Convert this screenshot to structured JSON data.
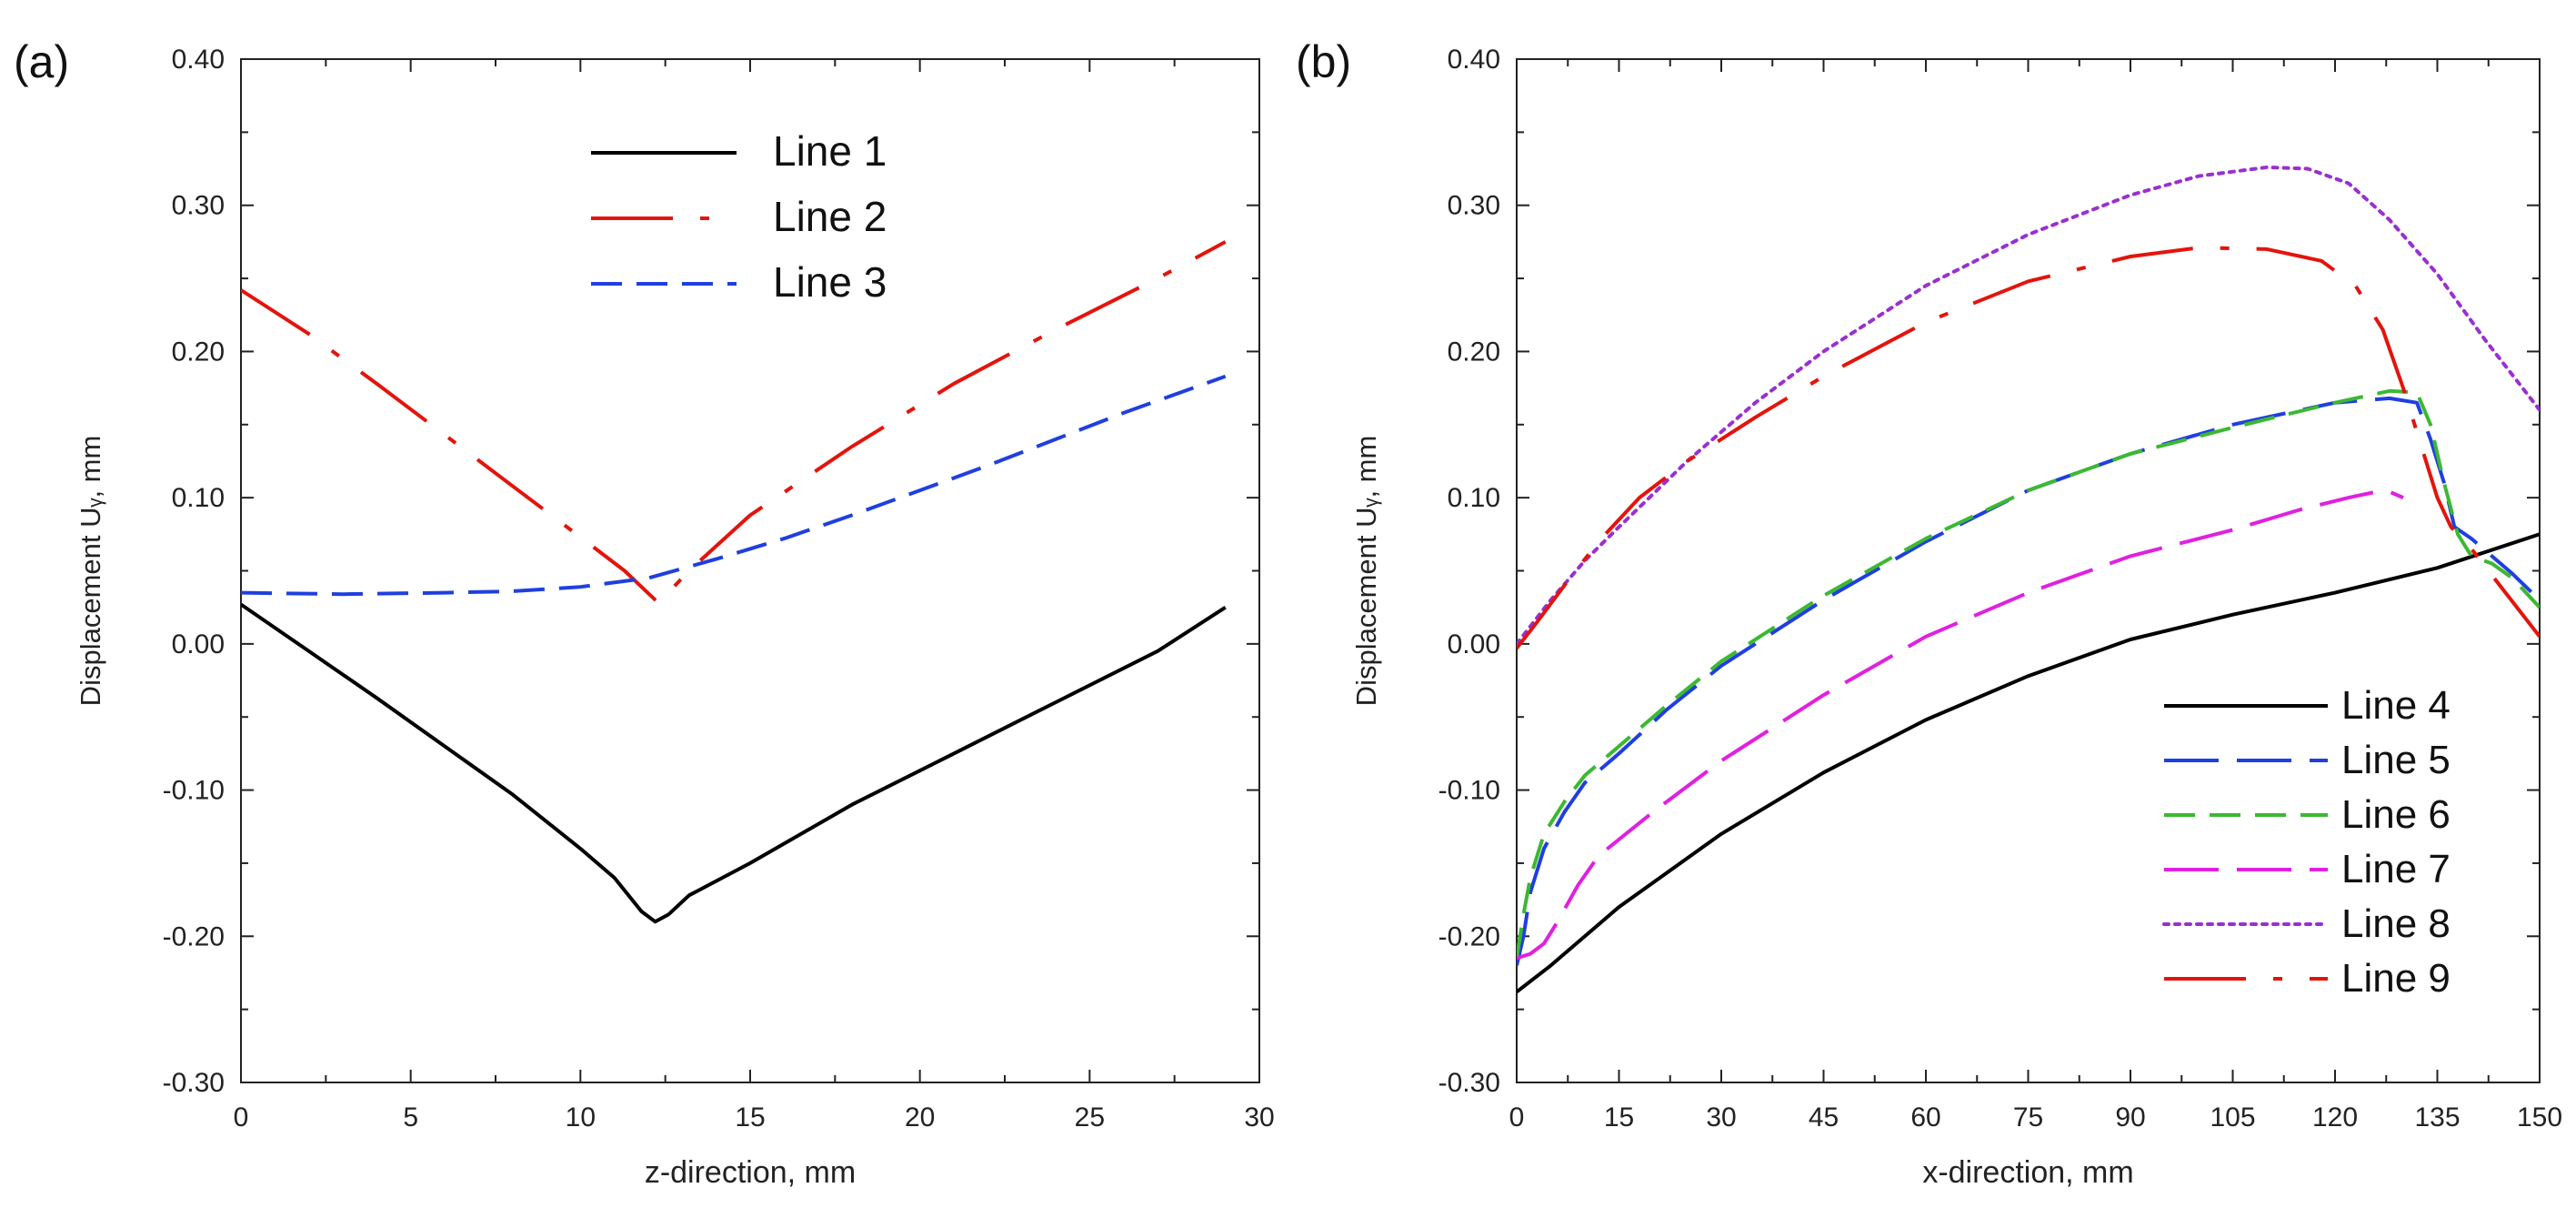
{
  "chart_data": [
    {
      "panel_label": "(a)",
      "type": "line",
      "xlabel": "z-direction, mm",
      "ylabel": "Displacement Uᵧ, mm",
      "xlim": [
        0,
        30
      ],
      "ylim": [
        -0.3,
        0.4
      ],
      "xticks": [
        "0",
        "5",
        "10",
        "15",
        "20",
        "25",
        "30"
      ],
      "yticks": [
        "-0.30",
        "-0.20",
        "-0.10",
        "0.00",
        "0.10",
        "0.20",
        "0.30",
        "0.40"
      ],
      "legend_position": "top-center",
      "series": [
        {
          "name": "Line 1",
          "color": "#000000",
          "style": "solid",
          "x": [
            0,
            2,
            4,
            6,
            8,
            10,
            11,
            11.8,
            12.2,
            12.6,
            13.2,
            15,
            18,
            21,
            24,
            27,
            29
          ],
          "y": [
            0.027,
            -0.005,
            -0.037,
            -0.07,
            -0.103,
            -0.14,
            -0.16,
            -0.183,
            -0.19,
            -0.185,
            -0.172,
            -0.15,
            -0.11,
            -0.075,
            -0.04,
            -0.005,
            0.025
          ]
        },
        {
          "name": "Line 2",
          "color": "#e3140c",
          "style": "dashdot",
          "x": [
            0,
            2,
            4,
            6,
            8,
            10,
            11.3,
            12.3,
            13.2,
            15,
            18,
            21,
            24,
            27,
            29
          ],
          "y": [
            0.242,
            0.212,
            0.178,
            0.143,
            0.108,
            0.073,
            0.05,
            0.028,
            0.05,
            0.088,
            0.135,
            0.178,
            0.215,
            0.25,
            0.275
          ]
        },
        {
          "name": "Line 3",
          "color": "#1f3fe0",
          "style": "dashed",
          "x": [
            0,
            3,
            6,
            8,
            10,
            12,
            14,
            16,
            18,
            20,
            22,
            24,
            26,
            29
          ],
          "y": [
            0.035,
            0.034,
            0.035,
            0.036,
            0.039,
            0.045,
            0.058,
            0.072,
            0.088,
            0.105,
            0.122,
            0.14,
            0.158,
            0.183
          ]
        }
      ]
    },
    {
      "panel_label": "(b)",
      "type": "line",
      "xlabel": "x-direction, mm",
      "ylabel": "Displacement Uᵧ, mm",
      "xlim": [
        0,
        150
      ],
      "ylim": [
        -0.3,
        0.4
      ],
      "xticks": [
        "0",
        "15",
        "30",
        "45",
        "60",
        "75",
        "90",
        "105",
        "120",
        "135",
        "150"
      ],
      "yticks": [
        "-0.30",
        "-0.20",
        "-0.10",
        "0.00",
        "0.10",
        "0.20",
        "0.30",
        "0.40"
      ],
      "legend_position": "bottom-right",
      "series": [
        {
          "name": "Line 4",
          "color": "#000000",
          "style": "solid",
          "x": [
            0,
            5,
            15,
            30,
            45,
            60,
            75,
            90,
            105,
            120,
            135,
            150
          ],
          "y": [
            -0.238,
            -0.22,
            -0.18,
            -0.13,
            -0.088,
            -0.052,
            -0.022,
            0.003,
            0.02,
            0.035,
            0.052,
            0.075
          ]
        },
        {
          "name": "Line 5",
          "color": "#1f3fe0",
          "style": "longdash",
          "x": [
            0,
            1,
            2,
            4,
            7,
            10,
            15,
            22,
            30,
            45,
            60,
            75,
            90,
            105,
            120,
            128,
            132,
            134,
            136,
            137.5,
            140,
            143,
            146,
            150
          ],
          "y": [
            -0.22,
            -0.2,
            -0.17,
            -0.14,
            -0.115,
            -0.095,
            -0.075,
            -0.045,
            -0.015,
            0.03,
            0.07,
            0.105,
            0.13,
            0.15,
            0.165,
            0.168,
            0.165,
            0.14,
            0.11,
            0.08,
            0.072,
            0.06,
            0.048,
            0.03
          ]
        },
        {
          "name": "Line 6",
          "color": "#3cb832",
          "style": "dashed",
          "x": [
            0,
            1,
            2,
            4,
            7,
            10,
            15,
            22,
            30,
            45,
            60,
            75,
            90,
            105,
            120,
            128,
            132,
            134,
            136,
            138,
            140,
            143,
            146,
            150
          ],
          "y": [
            -0.215,
            -0.185,
            -0.16,
            -0.13,
            -0.108,
            -0.09,
            -0.07,
            -0.042,
            -0.012,
            0.033,
            0.072,
            0.105,
            0.13,
            0.148,
            0.165,
            0.173,
            0.172,
            0.15,
            0.11,
            0.075,
            0.06,
            0.055,
            0.045,
            0.025
          ]
        },
        {
          "name": "Line 7",
          "color": "#e020e0",
          "style": "longdash",
          "x": [
            0,
            2,
            4,
            6,
            9,
            12,
            20,
            30,
            45,
            60,
            75,
            90,
            105,
            115,
            122,
            126,
            128,
            130
          ],
          "y": [
            -0.215,
            -0.212,
            -0.205,
            -0.19,
            -0.165,
            -0.145,
            -0.115,
            -0.08,
            -0.035,
            0.005,
            0.035,
            0.06,
            0.078,
            0.092,
            0.1,
            0.104,
            0.104,
            0.1
          ]
        },
        {
          "name": "Line 8",
          "color": "#9a2fd0",
          "style": "dotted",
          "x": [
            0,
            5,
            10,
            15,
            25,
            35,
            45,
            60,
            75,
            90,
            100,
            110,
            116,
            122,
            128,
            135,
            142,
            150
          ],
          "y": [
            0,
            0.03,
            0.057,
            0.08,
            0.125,
            0.165,
            0.2,
            0.245,
            0.28,
            0.307,
            0.32,
            0.326,
            0.325,
            0.315,
            0.29,
            0.253,
            0.208,
            0.16
          ]
        },
        {
          "name": "Line 9",
          "color": "#e3140c",
          "style": "dashdot",
          "x": [
            0,
            3,
            7,
            12,
            18,
            25,
            35,
            45,
            60,
            75,
            90,
            100,
            110,
            118,
            123,
            127,
            130,
            133,
            135,
            137,
            140,
            145,
            150
          ],
          "y": [
            -0.003,
            0.015,
            0.04,
            0.07,
            0.1,
            0.125,
            0.155,
            0.183,
            0.22,
            0.248,
            0.265,
            0.271,
            0.27,
            0.262,
            0.245,
            0.215,
            0.175,
            0.13,
            0.1,
            0.08,
            0.065,
            0.035,
            0.005
          ]
        }
      ]
    }
  ]
}
